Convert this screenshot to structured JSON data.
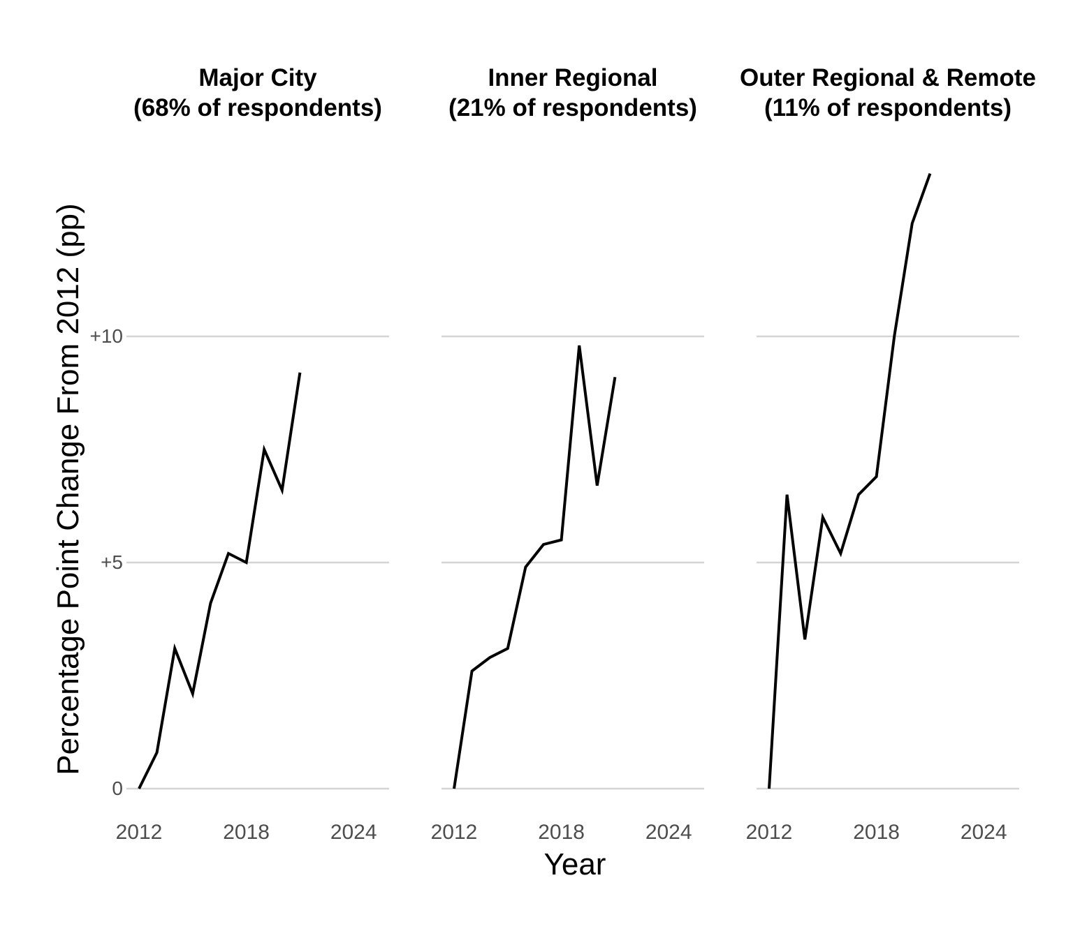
{
  "chart_data": {
    "type": "line",
    "xlabel": "Year",
    "ylabel": "Percentage Point Change From 2012 (pp)",
    "x": [
      2012,
      2013,
      2014,
      2015,
      2016,
      2017,
      2018,
      2019,
      2020,
      2021
    ],
    "x_ticks": [
      2012,
      2018,
      2024
    ],
    "x_range": [
      2011.3,
      2026.7
    ],
    "y_ticks": [
      {
        "label": "0",
        "value": 0
      },
      {
        "label": "+5",
        "value": 5
      },
      {
        "label": "+10",
        "value": 10
      }
    ],
    "y_range": [
      -0.7,
      14.3
    ],
    "grid": "horizontal-only",
    "legend": "none",
    "facets": [
      {
        "title_line1": "Major City",
        "title_line2": "(68% of respondents)",
        "series_name": "Major City",
        "values": [
          0,
          0.8,
          3.1,
          2.1,
          4.1,
          5.2,
          5.0,
          7.5,
          6.6,
          9.2
        ]
      },
      {
        "title_line1": "Inner Regional",
        "title_line2": "(21% of respondents)",
        "series_name": "Inner Regional",
        "values": [
          0,
          2.6,
          2.9,
          3.1,
          4.9,
          5.4,
          5.5,
          9.8,
          6.7,
          9.1
        ]
      },
      {
        "title_line1": "Outer Regional & Remote",
        "title_line2": "(11% of respondents)",
        "series_name": "Outer Regional & Remote",
        "values": [
          0,
          6.5,
          3.3,
          6.0,
          5.2,
          6.5,
          6.9,
          10.0,
          12.5,
          13.6
        ]
      }
    ],
    "colors": {
      "line": "#000000",
      "gridline": "#d4d4d4",
      "tick_text": "#4d4d4d",
      "title_text": "#000000",
      "background": "#ffffff"
    }
  }
}
